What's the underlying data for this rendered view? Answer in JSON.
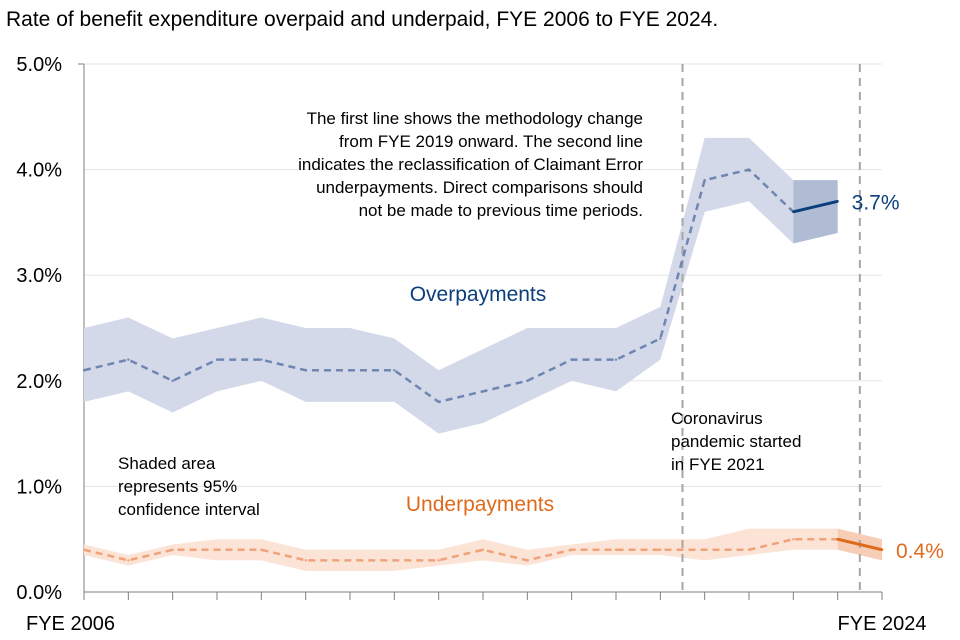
{
  "chart_data": {
    "type": "line",
    "title": "Rate of benefit expenditure overpaid and underpaid, FYE 2006 to FYE 2024.",
    "ylim": [
      0,
      5
    ],
    "y_ticks": [
      "0.0%",
      "1.0%",
      "2.0%",
      "3.0%",
      "4.0%",
      "5.0%"
    ],
    "x_tick_labels": [
      "FYE 2006",
      "FYE 2024"
    ],
    "x": [
      2006,
      2007,
      2008,
      2009,
      2010,
      2011,
      2012,
      2013,
      2014,
      2015,
      2016,
      2017,
      2018,
      2019,
      2020,
      2021,
      2022,
      2023,
      2024
    ],
    "series": [
      {
        "name": "Overpayments",
        "color": "#0b3f7c",
        "dash_color": "#6f86b3",
        "band_color": "#d3d9e8",
        "band_dark_color": "#b0bbd4",
        "values": [
          2.1,
          2.2,
          2.0,
          2.2,
          2.2,
          2.1,
          2.1,
          2.1,
          1.8,
          1.9,
          2.0,
          2.2,
          2.2,
          2.4,
          3.9,
          4.0,
          3.6,
          3.7
        ],
        "x": [
          2006,
          2007,
          2008,
          2009,
          2010,
          2011,
          2012,
          2013,
          2014,
          2015,
          2016,
          2017,
          2018,
          2019,
          2020,
          2021,
          2022,
          2023
        ],
        "ci_upper": [
          2.5,
          2.6,
          2.4,
          2.5,
          2.6,
          2.5,
          2.5,
          2.4,
          2.1,
          2.3,
          2.5,
          2.5,
          2.5,
          2.7,
          4.3,
          4.3,
          3.9,
          3.9
        ],
        "ci_lower": [
          1.8,
          1.9,
          1.7,
          1.9,
          2.0,
          1.8,
          1.8,
          1.8,
          1.5,
          1.6,
          1.8,
          2.0,
          1.9,
          2.2,
          3.6,
          3.7,
          3.3,
          3.4
        ],
        "end_label": "3.7%"
      },
      {
        "name": "Underpayments",
        "color": "#e06a1c",
        "dash_color": "#f0a27a",
        "band_color": "#fbe3d6",
        "band_dark_color": "#f8cdb5",
        "x": [
          2006,
          2007,
          2008,
          2009,
          2010,
          2011,
          2012,
          2013,
          2014,
          2015,
          2016,
          2017,
          2018,
          2019,
          2020,
          2021,
          2022,
          2023,
          2024
        ],
        "values": [
          0.4,
          0.3,
          0.4,
          0.4,
          0.4,
          0.3,
          0.3,
          0.3,
          0.3,
          0.4,
          0.3,
          0.4,
          0.4,
          0.4,
          0.4,
          0.4,
          0.5,
          0.5,
          0.4
        ],
        "ci_upper": [
          0.45,
          0.35,
          0.45,
          0.5,
          0.5,
          0.4,
          0.4,
          0.4,
          0.4,
          0.5,
          0.4,
          0.45,
          0.5,
          0.5,
          0.5,
          0.6,
          0.6,
          0.6,
          0.5
        ],
        "ci_lower": [
          0.35,
          0.25,
          0.35,
          0.3,
          0.3,
          0.2,
          0.2,
          0.2,
          0.25,
          0.3,
          0.25,
          0.35,
          0.35,
          0.35,
          0.3,
          0.35,
          0.4,
          0.4,
          0.3
        ],
        "end_label": "0.4%"
      }
    ],
    "annotations": {
      "methodology_note": [
        "The first line shows the methodology change",
        "from FYE 2019 onward. The second line",
        "indicates the reclassification of Claimant Error",
        "underpayments. Direct comparisons should",
        "not be made to previous time periods."
      ],
      "shaded_note": [
        "Shaded area",
        "represents 95%",
        "confidence interval"
      ],
      "coronavirus_note": [
        "Coronavirus",
        "pandemic started",
        "in FYE 2021"
      ]
    },
    "vertical_markers": [
      2019.5,
      2023.5
    ]
  }
}
